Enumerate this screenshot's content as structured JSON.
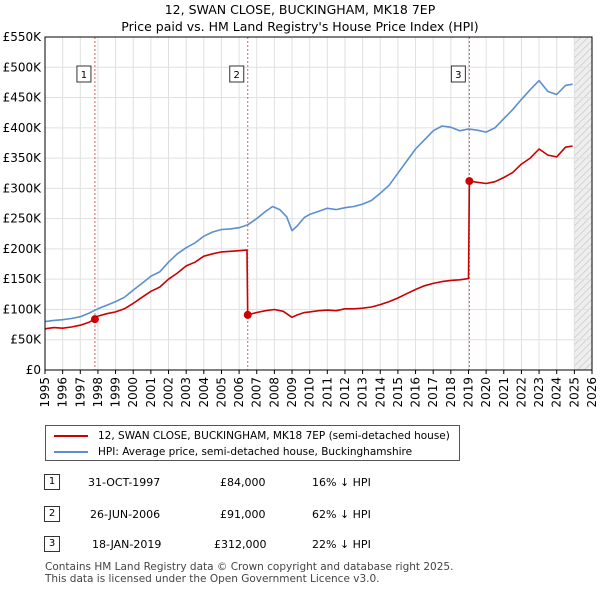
{
  "title": "12, SWAN CLOSE, BUCKINGHAM, MK18 7EP",
  "subtitle": "Price paid vs. HM Land Registry's House Price Index (HPI)",
  "chart_data": {
    "type": "line",
    "title": "12, SWAN CLOSE, BUCKINGHAM, MK18 7EP",
    "subtitle": "Price paid vs. HM Land Registry's House Price Index (HPI)",
    "xlabel": "",
    "ylabel": "",
    "xlim": [
      1995,
      2026
    ],
    "ylim": [
      0,
      550000
    ],
    "grid": true,
    "yticks": [
      0,
      50000,
      100000,
      150000,
      200000,
      250000,
      300000,
      350000,
      400000,
      450000,
      500000,
      550000
    ],
    "ytick_labels": [
      "£0",
      "£50K",
      "£100K",
      "£150K",
      "£200K",
      "£250K",
      "£300K",
      "£350K",
      "£400K",
      "£450K",
      "£500K",
      "£550K"
    ],
    "xticks": [
      1995,
      1996,
      1997,
      1998,
      1999,
      2000,
      2001,
      2002,
      2003,
      2004,
      2005,
      2006,
      2007,
      2008,
      2009,
      2010,
      2011,
      2012,
      2013,
      2014,
      2015,
      2016,
      2017,
      2018,
      2019,
      2020,
      2021,
      2022,
      2023,
      2024,
      2025,
      2026
    ],
    "xtick_labels": [
      "1995",
      "1996",
      "1997",
      "1998",
      "1999",
      "2000",
      "2001",
      "2002",
      "2003",
      "2004",
      "2005",
      "2006",
      "2007",
      "2008",
      "2009",
      "2010",
      "2011",
      "2012",
      "2013",
      "2014",
      "2015",
      "2016",
      "2017",
      "2018",
      "2019",
      "2020",
      "2021",
      "2022",
      "2023",
      "2024",
      "2025",
      "2026"
    ],
    "future_shading_from": 2025.0,
    "series": [
      {
        "name": "12, SWAN CLOSE, BUCKINGHAM, MK18 7EP (semi-detached house)",
        "color": "#cc0000",
        "x": [
          1995.0,
          1995.5,
          1996.0,
          1996.5,
          1997.0,
          1997.5,
          1997.83,
          1998.0,
          1998.5,
          1999.0,
          1999.5,
          2000.0,
          2000.5,
          2001.0,
          2001.5,
          2002.0,
          2002.5,
          2003.0,
          2003.5,
          2004.0,
          2004.5,
          2005.0,
          2005.5,
          2006.0,
          2006.45,
          2006.49,
          2007.0,
          2007.5,
          2008.0,
          2008.5,
          2009.0,
          2009.3,
          2009.7,
          2010.0,
          2010.5,
          2011.0,
          2011.5,
          2012.0,
          2012.5,
          2013.0,
          2013.5,
          2014.0,
          2014.5,
          2015.0,
          2015.5,
          2016.0,
          2016.5,
          2017.0,
          2017.5,
          2018.0,
          2018.5,
          2019.0,
          2019.05,
          2019.5,
          2020.0,
          2020.5,
          2021.0,
          2021.5,
          2022.0,
          2022.5,
          2023.0,
          2023.5,
          2024.0,
          2024.5,
          2024.9
        ],
        "values": [
          68000,
          70000,
          69000,
          71000,
          74000,
          79000,
          84000,
          89000,
          93000,
          96000,
          101000,
          110000,
          120000,
          130000,
          137000,
          150000,
          160000,
          172000,
          178000,
          188000,
          192000,
          195000,
          196000,
          197000,
          198000,
          91000,
          95000,
          98000,
          100000,
          97000,
          87000,
          91000,
          95000,
          96000,
          98000,
          99000,
          98000,
          101000,
          101000,
          102000,
          104000,
          108000,
          113000,
          119000,
          126000,
          133000,
          139000,
          143000,
          146000,
          148000,
          149000,
          151000,
          312000,
          310000,
          308000,
          311000,
          318000,
          326000,
          340000,
          350000,
          365000,
          355000,
          352000,
          368000,
          370000
        ]
      },
      {
        "name": "HPI: Average price, semi-detached house, Buckinghamshire",
        "color": "#5b8fd0",
        "x": [
          1995.0,
          1995.5,
          1996.0,
          1996.5,
          1997.0,
          1997.5,
          1998.0,
          1998.5,
          1999.0,
          1999.5,
          2000.0,
          2000.5,
          2001.0,
          2001.5,
          2002.0,
          2002.5,
          2003.0,
          2003.5,
          2004.0,
          2004.5,
          2005.0,
          2005.5,
          2006.0,
          2006.5,
          2007.0,
          2007.5,
          2007.9,
          2008.3,
          2008.7,
          2009.0,
          2009.3,
          2009.7,
          2010.0,
          2010.5,
          2011.0,
          2011.5,
          2012.0,
          2012.5,
          2013.0,
          2013.5,
          2014.0,
          2014.5,
          2015.0,
          2015.5,
          2016.0,
          2016.5,
          2017.0,
          2017.5,
          2018.0,
          2018.5,
          2019.0,
          2019.5,
          2020.0,
          2020.5,
          2021.0,
          2021.5,
          2022.0,
          2022.5,
          2023.0,
          2023.5,
          2024.0,
          2024.5,
          2024.9
        ],
        "values": [
          80000,
          82000,
          83000,
          85000,
          88000,
          94000,
          101000,
          107000,
          113000,
          120000,
          132000,
          143000,
          155000,
          162000,
          178000,
          192000,
          202000,
          210000,
          221000,
          228000,
          232000,
          233000,
          235000,
          240000,
          250000,
          262000,
          270000,
          265000,
          253000,
          230000,
          238000,
          252000,
          257000,
          262000,
          267000,
          265000,
          268000,
          270000,
          274000,
          280000,
          292000,
          305000,
          325000,
          345000,
          365000,
          380000,
          395000,
          403000,
          401000,
          395000,
          398000,
          396000,
          393000,
          400000,
          415000,
          430000,
          447000,
          463000,
          478000,
          460000,
          455000,
          470000,
          472000
        ]
      }
    ],
    "sales": [
      {
        "num": "1",
        "x": 1997.83,
        "value": 84000
      },
      {
        "num": "2",
        "x": 2006.49,
        "value": 91000
      },
      {
        "num": "3",
        "x": 2019.05,
        "value": 312000
      }
    ]
  },
  "legend": {
    "property_label": "12, SWAN CLOSE, BUCKINGHAM, MK18 7EP (semi-detached house)",
    "hpi_label": "HPI: Average price, semi-detached house, Buckinghamshire"
  },
  "transactions": [
    {
      "num": "1",
      "date": "31-OCT-1997",
      "price": "£84,000",
      "hpi": "16% ↓ HPI"
    },
    {
      "num": "2",
      "date": "26-JUN-2006",
      "price": "£91,000",
      "hpi": "62% ↓ HPI"
    },
    {
      "num": "3",
      "date": "18-JAN-2019",
      "price": "£312,000",
      "hpi": "22% ↓ HPI"
    }
  ],
  "footer": {
    "line1": "Contains HM Land Registry data © Crown copyright and database right 2025.",
    "line2": "This data is licensed under the Open Government Licence v3.0."
  },
  "colors": {
    "property": "#cc0000",
    "hpi": "#5b8fd0",
    "grid": "#e0e0e0",
    "marker_line": "#e06060",
    "future_shade": "#eeeeee"
  }
}
